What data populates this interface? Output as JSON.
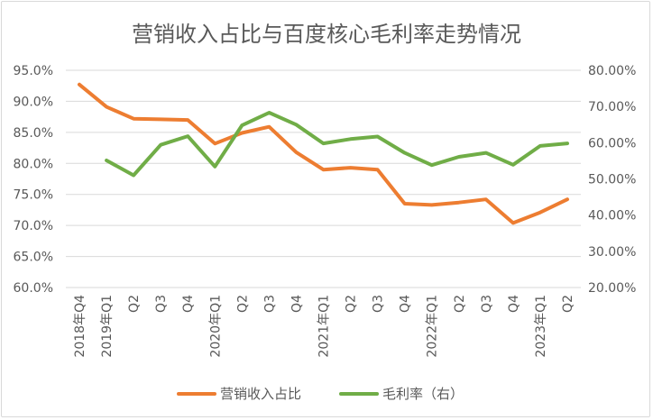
{
  "chart_data": {
    "type": "line",
    "title": "营销收入占比与百度核心毛利率走势情况",
    "categories": [
      "2018年Q4",
      "2019年Q1",
      "Q2",
      "Q3",
      "Q4",
      "2020年Q1",
      "Q2",
      "Q3",
      "Q4",
      "2021年Q1",
      "Q2",
      "Q3",
      "Q4",
      "2022年Q1",
      "Q2",
      "Q3",
      "Q4",
      "2023年Q1",
      "Q2"
    ],
    "y_left": {
      "ylim": [
        0.6,
        0.95
      ],
      "ticks": [
        "60.0%",
        "65.0%",
        "70.0%",
        "75.0%",
        "80.0%",
        "85.0%",
        "90.0%",
        "95.0%"
      ]
    },
    "y_right": {
      "ylim": [
        0.2,
        0.8
      ],
      "ticks": [
        "20.00%",
        "30.00%",
        "40.00%",
        "50.00%",
        "60.00%",
        "70.00%",
        "80.00%"
      ]
    },
    "grid": true,
    "legend_position": "bottom",
    "series": [
      {
        "name": "营销收入占比",
        "axis": "left",
        "color": "#ED7D31",
        "values": [
          0.927,
          0.891,
          0.872,
          0.871,
          0.87,
          0.832,
          0.849,
          0.859,
          0.818,
          0.79,
          0.793,
          0.79,
          0.735,
          0.733,
          0.737,
          0.742,
          0.704,
          0.721,
          0.742
        ]
      },
      {
        "name": "毛利率（右）",
        "axis": "right",
        "color": "#70AD47",
        "values": [
          null,
          0.551,
          0.51,
          0.594,
          0.618,
          0.534,
          0.648,
          0.683,
          0.65,
          0.598,
          0.61,
          0.617,
          0.572,
          0.538,
          0.561,
          0.572,
          0.539,
          0.591,
          0.598
        ]
      }
    ]
  }
}
